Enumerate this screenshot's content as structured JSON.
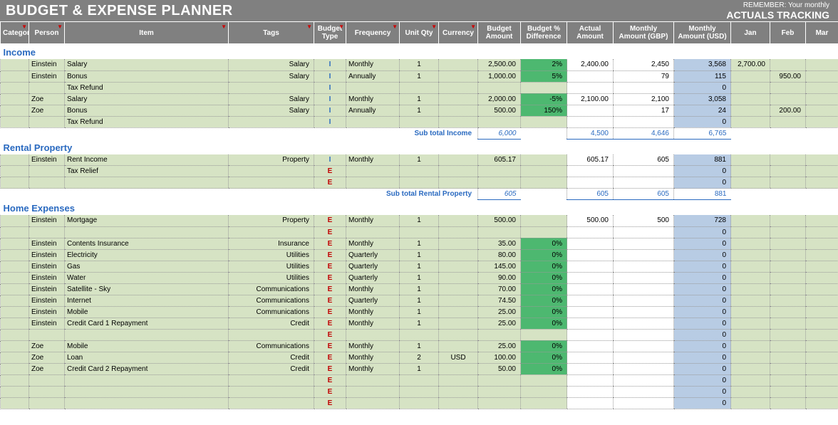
{
  "topbar": {
    "title": "BUDGET & EXPENSE PLANNER",
    "right_small": "REMEMBER: Your monthly",
    "right_big": "ACTUALS TRACKING"
  },
  "columns": {
    "category": "Category",
    "person": "Person",
    "item": "Item",
    "tags": "Tags",
    "budget_type": "Budget Type",
    "frequency": "Frequency",
    "unit_qty": "Unit Qty",
    "currency": "Currency",
    "budget_amount": "Budget Amount",
    "budget_diff": "Budget % Difference",
    "actual_amount": "Actual Amount",
    "monthly_gbp": "Monthly Amount (GBP)",
    "monthly_usd": "Monthly Amount (USD)",
    "jan": "Jan",
    "feb": "Feb",
    "mar": "Mar"
  },
  "col_widths": {
    "category": 40,
    "person": 50,
    "item": 230,
    "tags": 120,
    "budget_type": 45,
    "frequency": 75,
    "unit_qty": 55,
    "currency": 55,
    "budget_amount": 60,
    "budget_diff": 65,
    "actual_amount": 65,
    "monthly_gbp": 85,
    "monthly_usd": 80,
    "jan": 55,
    "feb": 50,
    "mar": 46
  },
  "colors": {
    "header_bg": "#808080",
    "row_bg": "#d6e3c4",
    "usd_bg": "#b8cce4",
    "diff_bg": "#4db870",
    "blue": "#2a6ac0",
    "red": "#c00000"
  },
  "sections": [
    {
      "name": "Income",
      "rows": [
        {
          "person": "Einstein",
          "item": "Salary",
          "tags": "Salary",
          "bt": "I",
          "freq": "Monthly",
          "qty": "1",
          "cur": "",
          "amt": "2,500.00",
          "diff": "2%",
          "actual": "2,400.00",
          "gbp": "2,450",
          "usd": "3,568",
          "jan": "2,700.00",
          "feb": "",
          "mar": ""
        },
        {
          "person": "Einstein",
          "item": "Bonus",
          "tags": "Salary",
          "bt": "I",
          "freq": "Annually",
          "qty": "1",
          "cur": "",
          "amt": "1,000.00",
          "diff": "5%",
          "actual": "",
          "gbp": "79",
          "usd": "115",
          "jan": "",
          "feb": "950.00",
          "mar": ""
        },
        {
          "person": "",
          "item": "Tax Refund",
          "tags": "",
          "bt": "I",
          "freq": "",
          "qty": "",
          "cur": "",
          "amt": "",
          "diff": "",
          "actual": "",
          "gbp": "",
          "usd": "0",
          "jan": "",
          "feb": "",
          "mar": ""
        },
        {
          "person": "Zoe",
          "item": "Salary",
          "tags": "Salary",
          "bt": "I",
          "freq": "Monthly",
          "qty": "1",
          "cur": "",
          "amt": "2,000.00",
          "diff": "-5%",
          "actual": "2,100.00",
          "gbp": "2,100",
          "usd": "3,058",
          "jan": "",
          "feb": "",
          "mar": ""
        },
        {
          "person": "Zoe",
          "item": "Bonus",
          "tags": "Salary",
          "bt": "I",
          "freq": "Annually",
          "qty": "1",
          "cur": "",
          "amt": "500.00",
          "diff": "150%",
          "actual": "",
          "gbp": "17",
          "usd": "24",
          "jan": "",
          "feb": "200.00",
          "mar": ""
        },
        {
          "person": "",
          "item": "Tax Refund",
          "tags": "",
          "bt": "I",
          "freq": "",
          "qty": "",
          "cur": "",
          "amt": "",
          "diff": "",
          "actual": "",
          "gbp": "",
          "usd": "0",
          "jan": "",
          "feb": "",
          "mar": ""
        }
      ],
      "subtotal": {
        "label": "Sub total Income",
        "amt": "6,000",
        "actual": "4,500",
        "gbp": "4,646",
        "usd": "6,765"
      }
    },
    {
      "name": "Rental Property",
      "rows": [
        {
          "person": "Einstein",
          "item": "Rent Income",
          "tags": "Property",
          "bt": "I",
          "freq": "Monthly",
          "qty": "1",
          "cur": "",
          "amt": "605.17",
          "diff": "",
          "actual": "605.17",
          "gbp": "605",
          "usd": "881",
          "jan": "",
          "feb": "",
          "mar": ""
        },
        {
          "person": "",
          "item": "Tax Relief",
          "tags": "",
          "bt": "E",
          "freq": "",
          "qty": "",
          "cur": "",
          "amt": "",
          "diff": "",
          "actual": "",
          "gbp": "",
          "usd": "0",
          "jan": "",
          "feb": "",
          "mar": ""
        },
        {
          "person": "",
          "item": "",
          "tags": "",
          "bt": "E",
          "freq": "",
          "qty": "",
          "cur": "",
          "amt": "",
          "diff": "",
          "actual": "",
          "gbp": "",
          "usd": "0",
          "jan": "",
          "feb": "",
          "mar": ""
        }
      ],
      "subtotal": {
        "label": "Sub total Rental Property",
        "amt": "605",
        "actual": "605",
        "gbp": "605",
        "usd": "881"
      }
    },
    {
      "name": "Home Expenses",
      "rows": [
        {
          "person": "Einstein",
          "item": "Mortgage",
          "tags": "Property",
          "bt": "E",
          "freq": "Monthly",
          "qty": "1",
          "cur": "",
          "amt": "500.00",
          "diff": "",
          "actual": "500.00",
          "gbp": "500",
          "usd": "728",
          "jan": "",
          "feb": "",
          "mar": ""
        },
        {
          "person": "",
          "item": "",
          "tags": "",
          "bt": "E",
          "freq": "",
          "qty": "",
          "cur": "",
          "amt": "",
          "diff": "",
          "actual": "",
          "gbp": "",
          "usd": "0",
          "jan": "",
          "feb": "",
          "mar": ""
        },
        {
          "person": "Einstein",
          "item": "Contents Insurance",
          "tags": "Insurance",
          "bt": "E",
          "freq": "Monthly",
          "qty": "1",
          "cur": "",
          "amt": "35.00",
          "diff": "0%",
          "actual": "",
          "gbp": "",
          "usd": "0",
          "jan": "",
          "feb": "",
          "mar": ""
        },
        {
          "person": "Einstein",
          "item": "Electricity",
          "tags": "Utilities",
          "bt": "E",
          "freq": "Quarterly",
          "qty": "1",
          "cur": "",
          "amt": "80.00",
          "diff": "0%",
          "actual": "",
          "gbp": "",
          "usd": "0",
          "jan": "",
          "feb": "",
          "mar": ""
        },
        {
          "person": "Einstein",
          "item": "Gas",
          "tags": "Utilities",
          "bt": "E",
          "freq": "Quarterly",
          "qty": "1",
          "cur": "",
          "amt": "145.00",
          "diff": "0%",
          "actual": "",
          "gbp": "",
          "usd": "0",
          "jan": "",
          "feb": "",
          "mar": ""
        },
        {
          "person": "Einstein",
          "item": "Water",
          "tags": "Utilities",
          "bt": "E",
          "freq": "Quarterly",
          "qty": "1",
          "cur": "",
          "amt": "90.00",
          "diff": "0%",
          "actual": "",
          "gbp": "",
          "usd": "0",
          "jan": "",
          "feb": "",
          "mar": ""
        },
        {
          "person": "Einstein",
          "item": "Satellite - Sky",
          "tags": "Communications",
          "bt": "E",
          "freq": "Monthly",
          "qty": "1",
          "cur": "",
          "amt": "70.00",
          "diff": "0%",
          "actual": "",
          "gbp": "",
          "usd": "0",
          "jan": "",
          "feb": "",
          "mar": ""
        },
        {
          "person": "Einstein",
          "item": "Internet",
          "tags": "Communications",
          "bt": "E",
          "freq": "Quarterly",
          "qty": "1",
          "cur": "",
          "amt": "74.50",
          "diff": "0%",
          "actual": "",
          "gbp": "",
          "usd": "0",
          "jan": "",
          "feb": "",
          "mar": ""
        },
        {
          "person": "Einstein",
          "item": "Mobile",
          "tags": "Communications",
          "bt": "E",
          "freq": "Monthly",
          "qty": "1",
          "cur": "",
          "amt": "25.00",
          "diff": "0%",
          "actual": "",
          "gbp": "",
          "usd": "0",
          "jan": "",
          "feb": "",
          "mar": ""
        },
        {
          "person": "Einstein",
          "item": "Credit Card 1 Repayment",
          "tags": "Credit",
          "bt": "E",
          "freq": "Monthly",
          "qty": "1",
          "cur": "",
          "amt": "25.00",
          "diff": "0%",
          "actual": "",
          "gbp": "",
          "usd": "0",
          "jan": "",
          "feb": "",
          "mar": ""
        },
        {
          "person": "",
          "item": "",
          "tags": "",
          "bt": "E",
          "freq": "",
          "qty": "",
          "cur": "",
          "amt": "",
          "diff": "",
          "actual": "",
          "gbp": "",
          "usd": "0",
          "jan": "",
          "feb": "",
          "mar": ""
        },
        {
          "person": "Zoe",
          "item": "Mobile",
          "tags": "Communications",
          "bt": "E",
          "freq": "Monthly",
          "qty": "1",
          "cur": "",
          "amt": "25.00",
          "diff": "0%",
          "actual": "",
          "gbp": "",
          "usd": "0",
          "jan": "",
          "feb": "",
          "mar": ""
        },
        {
          "person": "Zoe",
          "item": "Loan",
          "tags": "Credit",
          "bt": "E",
          "freq": "Monthly",
          "qty": "2",
          "cur": "USD",
          "amt": "100.00",
          "diff": "0%",
          "actual": "",
          "gbp": "",
          "usd": "0",
          "jan": "",
          "feb": "",
          "mar": ""
        },
        {
          "person": "Zoe",
          "item": "Credit Card 2 Repayment",
          "tags": "Credit",
          "bt": "E",
          "freq": "Monthly",
          "qty": "1",
          "cur": "",
          "amt": "50.00",
          "diff": "0%",
          "actual": "",
          "gbp": "",
          "usd": "0",
          "jan": "",
          "feb": "",
          "mar": ""
        },
        {
          "person": "",
          "item": "",
          "tags": "",
          "bt": "E",
          "freq": "",
          "qty": "",
          "cur": "",
          "amt": "",
          "diff": "",
          "actual": "",
          "gbp": "",
          "usd": "0",
          "jan": "",
          "feb": "",
          "mar": ""
        },
        {
          "person": "",
          "item": "",
          "tags": "",
          "bt": "E",
          "freq": "",
          "qty": "",
          "cur": "",
          "amt": "",
          "diff": "",
          "actual": "",
          "gbp": "",
          "usd": "0",
          "jan": "",
          "feb": "",
          "mar": ""
        },
        {
          "person": "",
          "item": "",
          "tags": "",
          "bt": "E",
          "freq": "",
          "qty": "",
          "cur": "",
          "amt": "",
          "diff": "",
          "actual": "",
          "gbp": "",
          "usd": "0",
          "jan": "",
          "feb": "",
          "mar": ""
        }
      ]
    }
  ]
}
